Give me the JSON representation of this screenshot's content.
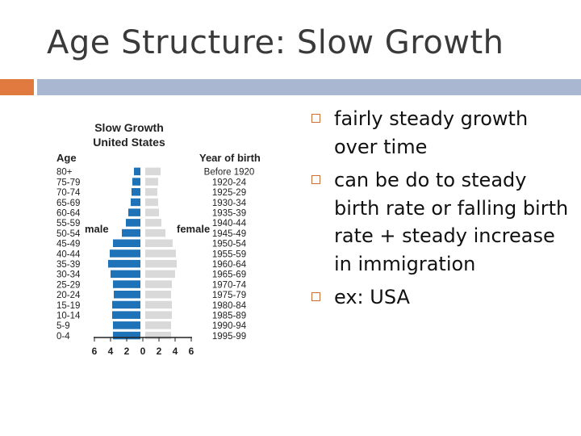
{
  "slide": {
    "title": "Age Structure: Slow Growth",
    "bullets": [
      "fairly steady growth over time",
      "can be do to steady birth rate or falling birth rate + steady increase in immigration",
      "ex: USA"
    ]
  },
  "colors": {
    "accent_orange": "#e07a3f",
    "band_blue": "#a9b8d0",
    "male_bar": "#1d72b8",
    "female_bar": "#d9d9d9"
  },
  "chart_data": {
    "type": "bar",
    "orientation": "horizontal-pyramid",
    "title": "Slow Growth",
    "subtitle": "United States",
    "left_axis_title": "Age",
    "right_axis_title": "Year of birth",
    "male_label": "male",
    "female_label": "female",
    "age_groups": [
      "80+",
      "75-79",
      "70-74",
      "65-69",
      "60-64",
      "55-59",
      "50-54",
      "45-49",
      "40-44",
      "35-39",
      "30-34",
      "25-29",
      "20-24",
      "15-19",
      "10-14",
      "5-9",
      "0-4"
    ],
    "birth_years": [
      "Before 1920",
      "1920-24",
      "1925-29",
      "1930-34",
      "1935-39",
      "1940-44",
      "1945-49",
      "1950-54",
      "1955-59",
      "1960-64",
      "1965-69",
      "1970-74",
      "1975-79",
      "1980-84",
      "1985-89",
      "1990-94",
      "1995-99"
    ],
    "series": [
      {
        "name": "male",
        "values": [
          0.8,
          1.0,
          1.1,
          1.2,
          1.5,
          1.8,
          2.3,
          3.4,
          3.8,
          4.0,
          3.7,
          3.4,
          3.3,
          3.5,
          3.5,
          3.4,
          3.4
        ]
      },
      {
        "name": "female",
        "values": [
          1.9,
          1.6,
          1.5,
          1.6,
          1.7,
          2.0,
          2.5,
          3.4,
          3.8,
          3.9,
          3.7,
          3.3,
          3.2,
          3.3,
          3.3,
          3.2,
          3.2
        ]
      }
    ],
    "x_ticks": [
      "6",
      "4",
      "2",
      "0",
      "2",
      "4",
      "6"
    ],
    "xlim": [
      -6,
      6
    ]
  }
}
